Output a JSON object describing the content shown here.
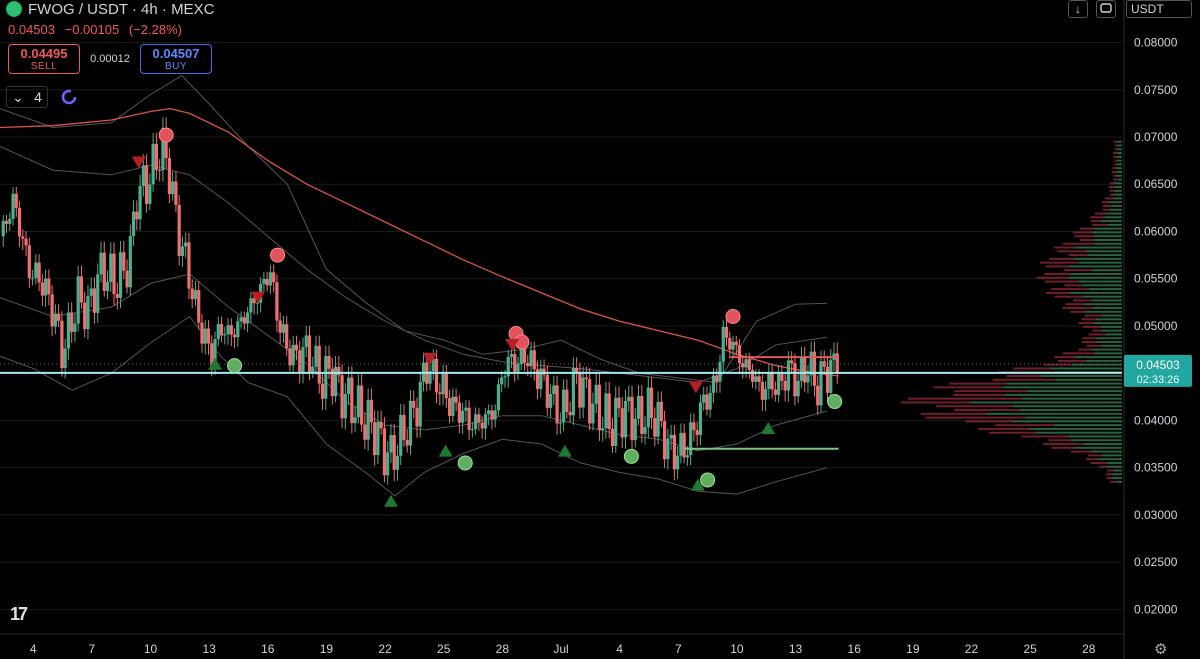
{
  "header": {
    "symbol": "FWOG / USDT · 4h · MEXC",
    "price_line": [
      "0.04503",
      "−0.00105",
      "(−2.28%)"
    ],
    "sell_price": "0.04495",
    "sell_label": "SELL",
    "spread": "0.00012",
    "buy_price": "0.04507",
    "buy_label": "BUY",
    "indicator_count": "4",
    "currency": "USDT",
    "down_arrow": "↓",
    "logo": "17"
  },
  "colors": {
    "up": "#26a69a",
    "down": "#ef5350",
    "upCandle": "#4caf8f",
    "downCandle": "#f07070",
    "ma": "#d9534f",
    "band": "#555555",
    "priceLine": "#a5e8f0",
    "priceBox": "#22a6a0"
  },
  "chart_data": {
    "type": "candlestick",
    "title": "FWOG / USDT · 4h · MEXC",
    "ylim": [
      0.0175,
      0.0845
    ],
    "y_ticks": [
      "0.08000",
      "0.07500",
      "0.07000",
      "0.06500",
      "0.06000",
      "0.05500",
      "0.05000",
      "0.04500",
      "0.04000",
      "0.03500",
      "0.03000",
      "0.02500",
      "0.02000"
    ],
    "y_tick_values": [
      0.08,
      0.075,
      0.07,
      0.065,
      0.06,
      0.055,
      0.05,
      0.045,
      0.04,
      0.035,
      0.03,
      0.025,
      0.02
    ],
    "x_ticks": [
      "4",
      "7",
      "10",
      "13",
      "16",
      "19",
      "22",
      "25",
      "28",
      "Jul",
      "4",
      "7",
      "10",
      "13",
      "16",
      "19",
      "22",
      "25",
      "28"
    ],
    "x_tick_days": [
      4,
      7,
      10,
      13,
      16,
      19,
      22,
      25,
      28,
      31,
      34,
      37,
      40,
      43,
      46,
      49,
      52,
      55,
      58
    ],
    "x_range_days": [
      2.3,
      59.7
    ],
    "data_end_day": 45.2,
    "current_price": "0.04503",
    "current_price_value": 0.04503,
    "countdown": "02:33:26",
    "close_path": [
      [
        2.3,
        0.0595
      ],
      [
        2.8,
        0.062
      ],
      [
        3.0,
        0.0635
      ],
      [
        3.3,
        0.0605
      ],
      [
        3.8,
        0.056
      ],
      [
        4.5,
        0.0545
      ],
      [
        5.1,
        0.051
      ],
      [
        5.5,
        0.047
      ],
      [
        5.9,
        0.05
      ],
      [
        6.3,
        0.053
      ],
      [
        6.8,
        0.0515
      ],
      [
        7.2,
        0.0545
      ],
      [
        7.6,
        0.056
      ],
      [
        8.1,
        0.0545
      ],
      [
        8.6,
        0.0555
      ],
      [
        9.0,
        0.058
      ],
      [
        9.3,
        0.064
      ],
      [
        9.8,
        0.065
      ],
      [
        10.2,
        0.067
      ],
      [
        10.6,
        0.069
      ],
      [
        11.0,
        0.066
      ],
      [
        11.4,
        0.06
      ],
      [
        11.8,
        0.057
      ],
      [
        12.3,
        0.052
      ],
      [
        12.7,
        0.049
      ],
      [
        13.1,
        0.047
      ],
      [
        13.6,
        0.05
      ],
      [
        14.0,
        0.049
      ],
      [
        14.5,
        0.05
      ],
      [
        15.1,
        0.052
      ],
      [
        15.7,
        0.054
      ],
      [
        16.1,
        0.056
      ],
      [
        16.5,
        0.051
      ],
      [
        16.9,
        0.048
      ],
      [
        17.4,
        0.0465
      ],
      [
        17.9,
        0.0475
      ],
      [
        18.4,
        0.046
      ],
      [
        18.8,
        0.044
      ],
      [
        19.2,
        0.0455
      ],
      [
        19.7,
        0.043
      ],
      [
        20.2,
        0.042
      ],
      [
        20.6,
        0.041
      ],
      [
        21.0,
        0.04
      ],
      [
        21.5,
        0.039
      ],
      [
        21.9,
        0.037
      ],
      [
        22.3,
        0.036
      ],
      [
        22.8,
        0.038
      ],
      [
        23.3,
        0.04
      ],
      [
        23.7,
        0.042
      ],
      [
        24.1,
        0.046
      ],
      [
        24.5,
        0.0445
      ],
      [
        24.9,
        0.0435
      ],
      [
        25.4,
        0.0415
      ],
      [
        25.9,
        0.041
      ],
      [
        26.4,
        0.0395
      ],
      [
        27.0,
        0.04
      ],
      [
        27.6,
        0.041
      ],
      [
        28.0,
        0.045
      ],
      [
        28.4,
        0.0465
      ],
      [
        28.8,
        0.046
      ],
      [
        29.2,
        0.047
      ],
      [
        29.6,
        0.0455
      ],
      [
        30.1,
        0.044
      ],
      [
        30.6,
        0.042
      ],
      [
        31.0,
        0.0405
      ],
      [
        31.4,
        0.042
      ],
      [
        31.8,
        0.0445
      ],
      [
        32.2,
        0.043
      ],
      [
        32.7,
        0.0415
      ],
      [
        33.1,
        0.0405
      ],
      [
        33.6,
        0.0395
      ],
      [
        34.1,
        0.041
      ],
      [
        34.6,
        0.0405
      ],
      [
        35.0,
        0.04
      ],
      [
        35.5,
        0.041
      ],
      [
        36.0,
        0.04
      ],
      [
        36.5,
        0.037
      ],
      [
        37.0,
        0.0365
      ],
      [
        37.5,
        0.0375
      ],
      [
        37.9,
        0.0395
      ],
      [
        38.3,
        0.042
      ],
      [
        38.7,
        0.043
      ],
      [
        39.0,
        0.045
      ],
      [
        39.3,
        0.049
      ],
      [
        39.8,
        0.048
      ],
      [
        40.3,
        0.046
      ],
      [
        40.8,
        0.045
      ],
      [
        41.2,
        0.043
      ],
      [
        41.7,
        0.044
      ],
      [
        42.2,
        0.0435
      ],
      [
        42.6,
        0.0455
      ],
      [
        43.1,
        0.044
      ],
      [
        43.6,
        0.046
      ],
      [
        44.1,
        0.0435
      ],
      [
        44.6,
        0.0455
      ],
      [
        45.2,
        0.04503
      ]
    ],
    "ma_path": [
      [
        2.3,
        0.071
      ],
      [
        5.0,
        0.0712
      ],
      [
        8.0,
        0.0718
      ],
      [
        10.0,
        0.0727
      ],
      [
        11.0,
        0.073
      ],
      [
        12.0,
        0.0725
      ],
      [
        14.0,
        0.0705
      ],
      [
        16.0,
        0.0675
      ],
      [
        18.0,
        0.065
      ],
      [
        20.0,
        0.063
      ],
      [
        22.0,
        0.061
      ],
      [
        24.0,
        0.059
      ],
      [
        26.0,
        0.057
      ],
      [
        28.0,
        0.0552
      ],
      [
        30.0,
        0.0535
      ],
      [
        32.0,
        0.0518
      ],
      [
        34.0,
        0.0505
      ],
      [
        36.0,
        0.0495
      ],
      [
        38.0,
        0.0485
      ],
      [
        40.0,
        0.047
      ],
      [
        42.0,
        0.0458
      ],
      [
        44.0,
        0.045
      ],
      [
        45.2,
        0.0447
      ]
    ],
    "upper_band": [
      [
        2.3,
        0.073
      ],
      [
        5.0,
        0.071
      ],
      [
        8.0,
        0.0715
      ],
      [
        10.0,
        0.0745
      ],
      [
        11.6,
        0.0765
      ],
      [
        13.0,
        0.0735
      ],
      [
        15.0,
        0.069
      ],
      [
        17.0,
        0.065
      ],
      [
        19.0,
        0.056
      ],
      [
        21.0,
        0.0525
      ],
      [
        23.0,
        0.0495
      ],
      [
        25.0,
        0.0485
      ],
      [
        27.0,
        0.047
      ],
      [
        29.0,
        0.0475
      ],
      [
        31.0,
        0.0485
      ],
      [
        33.0,
        0.0465
      ],
      [
        35.0,
        0.045
      ],
      [
        37.0,
        0.0445
      ],
      [
        39.0,
        0.044
      ],
      [
        41.0,
        0.0505
      ],
      [
        43.0,
        0.0523
      ],
      [
        44.6,
        0.0524
      ]
    ],
    "inner_band": [
      [
        2.3,
        0.069
      ],
      [
        5.0,
        0.0665
      ],
      [
        8.0,
        0.066
      ],
      [
        10.0,
        0.067
      ],
      [
        12.0,
        0.066
      ],
      [
        14.0,
        0.063
      ],
      [
        16.0,
        0.0595
      ],
      [
        18.0,
        0.056
      ],
      [
        20.0,
        0.053
      ],
      [
        22.0,
        0.0505
      ],
      [
        24.0,
        0.0485
      ],
      [
        26.0,
        0.047
      ],
      [
        28.0,
        0.0462
      ],
      [
        30.0,
        0.0458
      ],
      [
        32.0,
        0.0455
      ],
      [
        34.0,
        0.045
      ],
      [
        36.0,
        0.0445
      ],
      [
        38.0,
        0.044
      ],
      [
        40.0,
        0.0455
      ],
      [
        42.0,
        0.048
      ],
      [
        44.6,
        0.0488
      ]
    ],
    "lower_band": [
      [
        2.3,
        0.0468
      ],
      [
        4.0,
        0.0455
      ],
      [
        6.0,
        0.0432
      ],
      [
        8.0,
        0.045
      ],
      [
        10.0,
        0.0482
      ],
      [
        12.0,
        0.051
      ],
      [
        13.5,
        0.047
      ],
      [
        15.0,
        0.044
      ],
      [
        17.0,
        0.0425
      ],
      [
        19.0,
        0.0375
      ],
      [
        21.0,
        0.0345
      ],
      [
        22.5,
        0.032
      ],
      [
        24.0,
        0.0345
      ],
      [
        26.0,
        0.0365
      ],
      [
        28.0,
        0.038
      ],
      [
        30.0,
        0.0375
      ],
      [
        32.0,
        0.0355
      ],
      [
        34.0,
        0.0345
      ],
      [
        36.0,
        0.0338
      ],
      [
        38.0,
        0.0325
      ],
      [
        40.0,
        0.0322
      ],
      [
        42.0,
        0.0335
      ],
      [
        44.6,
        0.035
      ]
    ],
    "low_band_inner": [
      [
        2.3,
        0.053
      ],
      [
        5.0,
        0.051
      ],
      [
        8.0,
        0.052
      ],
      [
        10.0,
        0.0545
      ],
      [
        12.0,
        0.0555
      ],
      [
        14.0,
        0.052
      ],
      [
        16.0,
        0.049
      ],
      [
        18.0,
        0.046
      ],
      [
        20.0,
        0.042
      ],
      [
        22.0,
        0.0395
      ],
      [
        24.0,
        0.039
      ],
      [
        26.0,
        0.0395
      ],
      [
        28.0,
        0.0405
      ],
      [
        30.0,
        0.0405
      ],
      [
        32.0,
        0.0395
      ],
      [
        34.0,
        0.0385
      ],
      [
        36.0,
        0.038
      ],
      [
        38.0,
        0.0368
      ],
      [
        40.0,
        0.0375
      ],
      [
        42.0,
        0.0395
      ],
      [
        44.6,
        0.041
      ]
    ],
    "sell_circles": [
      [
        10.8,
        0.0702
      ],
      [
        16.5,
        0.0575
      ],
      [
        28.7,
        0.0492
      ],
      [
        29.0,
        0.0483
      ],
      [
        39.8,
        0.051
      ]
    ],
    "buy_circles": [
      [
        14.3,
        0.0458
      ],
      [
        26.1,
        0.0355
      ],
      [
        34.6,
        0.0362
      ],
      [
        38.5,
        0.0337
      ],
      [
        45.0,
        0.042
      ]
    ],
    "sell_triangles": [
      [
        9.4,
        0.0673
      ],
      [
        15.5,
        0.053
      ],
      [
        24.3,
        0.0465
      ],
      [
        28.5,
        0.048
      ],
      [
        37.9,
        0.0435
      ]
    ],
    "buy_triangles": [
      [
        13.3,
        0.046
      ],
      [
        22.3,
        0.0315
      ],
      [
        25.1,
        0.0368
      ],
      [
        31.2,
        0.0368
      ],
      [
        38.0,
        0.0332
      ],
      [
        41.6,
        0.0392
      ]
    ],
    "resistance_level": {
      "value": 0.0467,
      "from_day": 39.6,
      "to_day": 45.2
    },
    "support_level": {
      "value": 0.037,
      "from_day": 37.3,
      "to_day": 45.2
    },
    "volume_profile": {
      "price_min": 0.0335,
      "price_max": 0.0695,
      "step": 0.0004,
      "peak_price": 0.0418,
      "peak_width": 196,
      "second_peak": 0.0555,
      "second_width": 70
    }
  }
}
